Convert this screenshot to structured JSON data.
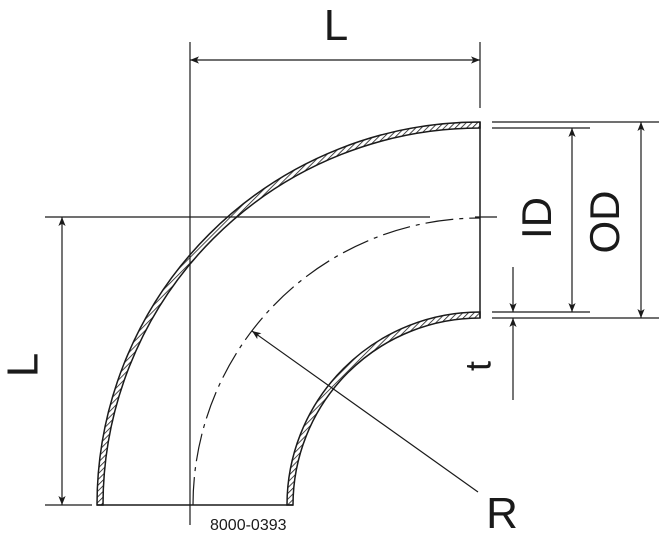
{
  "labels": {
    "length_top": "L",
    "length_left": "L",
    "inner_diameter": "ID",
    "outer_diameter": "OD",
    "wall_thickness": "t",
    "radius": "R",
    "part_number": "8000-0393"
  },
  "colors": {
    "line": "#1a1a1a",
    "background": "#ffffff"
  }
}
